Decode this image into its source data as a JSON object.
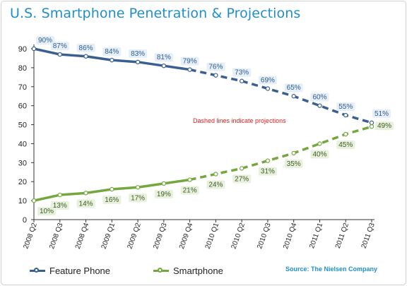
{
  "title": "U.S. Smartphone Penetration & Projections",
  "note": "Dashed lines indicate projections",
  "source": "Source: The Nielsen Company",
  "colors": {
    "feature": "#3a5f91",
    "smart": "#74a83e",
    "title": "#1f8fc9",
    "note": "#e01e1e",
    "label_bg_feature": "#e3edf7",
    "label_bg_smart": "#e6f0da"
  },
  "chart_data": {
    "type": "line",
    "title": "U.S. Smartphone Penetration & Projections",
    "categories": [
      "2008 Q2",
      "2008 Q3",
      "2008 Q4",
      "2009 Q1",
      "2009 Q2",
      "2009 Q3",
      "2009 Q4",
      "2010 Q1",
      "2010 Q2",
      "2010 Q3",
      "2010 Q4",
      "2011 Q1",
      "2011 Q2",
      "2011 Q3"
    ],
    "ylim": [
      0,
      90
    ],
    "yticks": [
      0,
      10,
      20,
      30,
      40,
      50,
      60,
      70,
      80,
      90
    ],
    "grid": false,
    "projection_start_index": 6,
    "legend_position": "bottom",
    "series": [
      {
        "name": "Feature Phone",
        "values": [
          90,
          87,
          86,
          84,
          83,
          81,
          79,
          76,
          73,
          69,
          65,
          60,
          55,
          51
        ],
        "labels": [
          "90%",
          "87%",
          "86%",
          "84%",
          "83%",
          "81%",
          "79%",
          "76%",
          "73%",
          "69%",
          "65%",
          "60%",
          "55%",
          "51%"
        ]
      },
      {
        "name": "Smartphone",
        "values": [
          10,
          13,
          14,
          16,
          17,
          19,
          21,
          24,
          27,
          31,
          35,
          40,
          45,
          49
        ],
        "labels": [
          "10%",
          "13%",
          "14%",
          "16%",
          "17%",
          "19%",
          "21%",
          "24%",
          "27%",
          "31%",
          "35%",
          "40%",
          "45%",
          "49%"
        ]
      }
    ]
  }
}
